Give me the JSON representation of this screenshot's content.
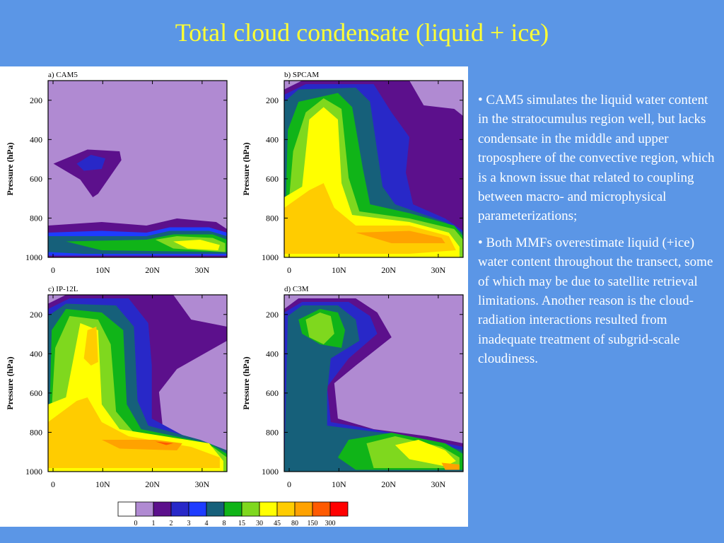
{
  "slide": {
    "title": "Total cloud condensate (liquid + ice)",
    "background_color": "#5b96e6",
    "title_color": "#ffff33"
  },
  "bullets": [
    {
      "marker": "•",
      "text": "CAM5 simulates the liquid water content in the stratocumulus region well, but lacks condensate in the middle and upper troposphere of the convective region, which is a known issue that related to coupling between macro- and microphysical parameterizations;"
    },
    {
      "marker": "•",
      "text": "Both MMFs overestimate liquid (+ice) water content throughout the transect, some of which may be due to satellite retrieval limitations. Another reason is the cloud-radiation interactions resulted from inadequate treatment of subgrid-scale cloudiness."
    }
  ],
  "chart_data": [
    {
      "type": "contour",
      "panel_label": "a) CAM5",
      "ylabel": "Pressure (hPa)",
      "x_ticks": [
        "0",
        "10N",
        "20N",
        "30N"
      ],
      "y_ticks": [
        "200",
        "400",
        "600",
        "800",
        "1000"
      ],
      "xlim": [
        -1,
        35
      ],
      "ylim": [
        1000,
        100
      ],
      "background_level": "0-1"
    },
    {
      "type": "contour",
      "panel_label": "b) SPCAM",
      "ylabel": "Pressure (hPa)",
      "x_ticks": [
        "0",
        "10N",
        "20N",
        "30N"
      ],
      "y_ticks": [
        "200",
        "400",
        "600",
        "800",
        "1000"
      ],
      "xlim": [
        -1,
        35
      ],
      "ylim": [
        1000,
        100
      ],
      "background_level": "0-1"
    },
    {
      "type": "contour",
      "panel_label": "c) IP-12L",
      "ylabel": "Pressure (hPa)",
      "x_ticks": [
        "0",
        "10N",
        "20N",
        "30N"
      ],
      "y_ticks": [
        "200",
        "400",
        "600",
        "800",
        "1000"
      ],
      "xlim": [
        -1,
        35
      ],
      "ylim": [
        1000,
        100
      ],
      "background_level": "0-1"
    },
    {
      "type": "contour",
      "panel_label": "d) C3M",
      "ylabel": "Pressure (hPa)",
      "x_ticks": [
        "0",
        "10N",
        "20N",
        "30N"
      ],
      "y_ticks": [
        "200",
        "400",
        "600",
        "800",
        "1000"
      ],
      "xlim": [
        -1,
        35
      ],
      "ylim": [
        1000,
        100
      ],
      "background_level": "0-1"
    }
  ],
  "colorbar": {
    "levels": [
      "0",
      "1",
      "2",
      "3",
      "4",
      "8",
      "15",
      "30",
      "45",
      "80",
      "150",
      "300"
    ],
    "colors": [
      "#ffffff",
      "#b08ad2",
      "#5c108c",
      "#2828c8",
      "#1e3cff",
      "#16607a",
      "#10b418",
      "#7fd81e",
      "#ffff00",
      "#ffcc00",
      "#ffa200",
      "#ff5a00",
      "#ff0000"
    ]
  }
}
